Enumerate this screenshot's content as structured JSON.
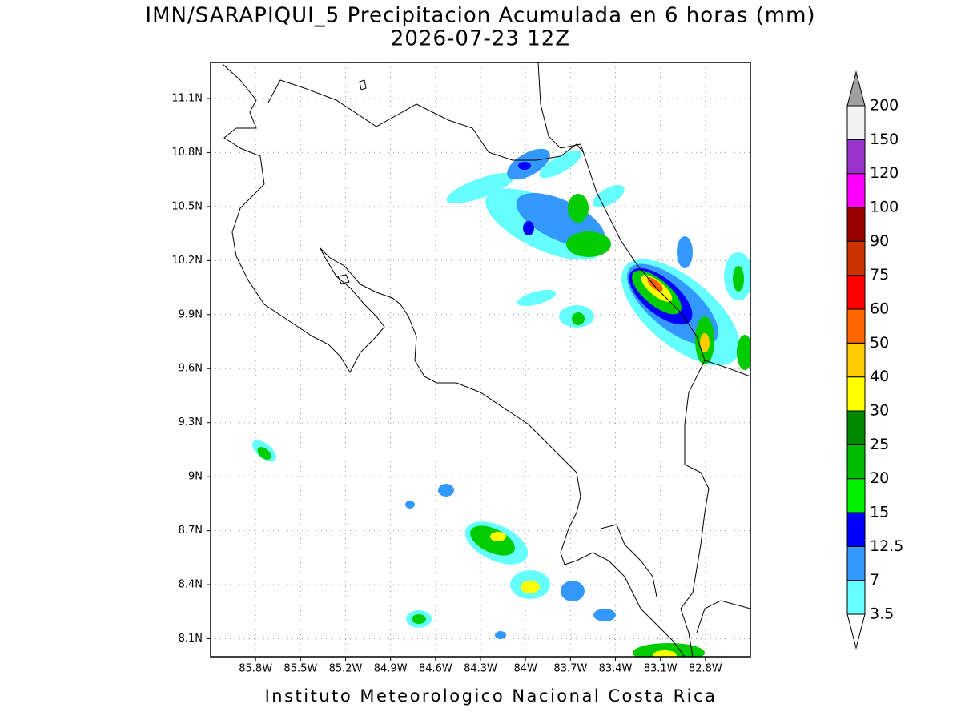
{
  "title": "IMN/SARAPIQUI_5 Precipitacion Acumulada en 6 horas (mm)",
  "subtitle": "2026-07-23 12Z",
  "footer": "Instituto Meteorologico Nacional Costa Rica",
  "map": {
    "xlim": [
      -86.1,
      -82.5
    ],
    "ylim": [
      8.0,
      11.3
    ],
    "grid": true,
    "xticks": [
      {
        "value": -85.8,
        "label": "85.8W"
      },
      {
        "value": -85.5,
        "label": "85.5W"
      },
      {
        "value": -85.2,
        "label": "85.2W"
      },
      {
        "value": -84.9,
        "label": "84.9W"
      },
      {
        "value": -84.6,
        "label": "84.6W"
      },
      {
        "value": -84.3,
        "label": "84.3W"
      },
      {
        "value": -84,
        "label": "84W"
      },
      {
        "value": -83.7,
        "label": "83.7W"
      },
      {
        "value": -83.4,
        "label": "83.4W"
      },
      {
        "value": -83.1,
        "label": "83.1W"
      },
      {
        "value": -82.8,
        "label": "82.8W"
      }
    ],
    "yticks": [
      {
        "value": 8.1,
        "label": "8.1N"
      },
      {
        "value": 8.4,
        "label": "8.4N"
      },
      {
        "value": 8.7,
        "label": "8.7N"
      },
      {
        "value": 9,
        "label": "9N"
      },
      {
        "value": 9.3,
        "label": "9.3N"
      },
      {
        "value": 9.6,
        "label": "9.6N"
      },
      {
        "value": 9.9,
        "label": "9.9N"
      },
      {
        "value": 10.2,
        "label": "10.2N"
      },
      {
        "value": 10.5,
        "label": "10.5N"
      },
      {
        "value": 10.8,
        "label": "10.8N"
      },
      {
        "value": 11.1,
        "label": "11.1N"
      }
    ]
  },
  "colorbar": {
    "levels": [
      3.5,
      7,
      12.5,
      15,
      20,
      25,
      30,
      40,
      50,
      60,
      75,
      90,
      100,
      120,
      150,
      200
    ],
    "colors": [
      "#66ffff",
      "#3399ff",
      "#0000ff",
      "#00ee00",
      "#00bb00",
      "#008800",
      "#ffff00",
      "#ffcc00",
      "#ff6600",
      "#ff0000",
      "#cc3300",
      "#990000",
      "#ff00ff",
      "#9933cc",
      "#f2f2f2"
    ],
    "under_color": "#ffffff",
    "over_color": "#a0a0a0"
  }
}
